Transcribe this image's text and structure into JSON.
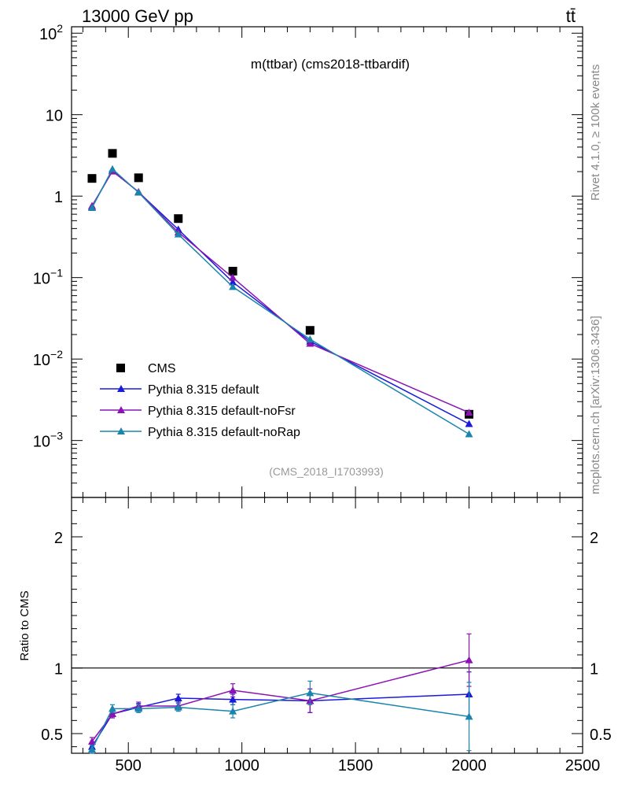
{
  "header": {
    "left_label": "13000 GeV pp",
    "right_label": "tt̄",
    "panel_title": "m(ttbar) (cms2018-ttbardif)",
    "side_label_top": "Rivet 4.1.0, ≥ 100k events",
    "side_label_bottom": "mcplots.cern.ch [arXiv:1306.3436]",
    "analysis_id": "(CMS_2018_I1703993)"
  },
  "colors": {
    "data": "#000000",
    "default": "#1a1adb",
    "noFsr": "#8b12b5",
    "noRap": "#1a84ad"
  },
  "chart_data": [
    {
      "type": "scatter",
      "title": "m(ttbar) (cms2018-ttbardif)",
      "xlabel": "",
      "ylabel": "",
      "yscale": "log",
      "xlim": [
        250,
        2500
      ],
      "ylim": [
        0.0002,
        120
      ],
      "y_ticks": [
        {
          "value": 100,
          "mant": "10",
          "exp": "2"
        },
        {
          "value": 10,
          "mant": "10",
          "exp": ""
        },
        {
          "value": 1,
          "mant": "1",
          "exp": ""
        },
        {
          "value": 0.1,
          "mant": "10",
          "exp": "−1"
        },
        {
          "value": 0.01,
          "mant": "10",
          "exp": "−2"
        },
        {
          "value": 0.001,
          "mant": "10",
          "exp": "−3"
        }
      ],
      "x": [
        340,
        430,
        545,
        720,
        960,
        1300,
        2000
      ],
      "series": [
        {
          "name": "CMS",
          "key": "data",
          "values": [
            1.65,
            3.35,
            1.68,
            0.53,
            0.12,
            0.0225,
            0.0021
          ]
        },
        {
          "name": "Pythia 8.315 default",
          "key": "default",
          "values": [
            0.74,
            2.07,
            1.12,
            0.39,
            0.088,
            0.0165,
            0.0016
          ]
        },
        {
          "name": "Pythia 8.315 default-noFsr",
          "key": "noFsr",
          "values": [
            0.76,
            2.02,
            1.13,
            0.36,
            0.1,
            0.0155,
            0.0022
          ]
        },
        {
          "name": "Pythia 8.315 default-noRap",
          "key": "noRap",
          "values": [
            0.72,
            2.15,
            1.11,
            0.34,
            0.077,
            0.0175,
            0.0012
          ]
        }
      ],
      "legend_position": "lower-left"
    },
    {
      "type": "line",
      "ylabel": "Ratio to CMS",
      "ylim": [
        0.35,
        2.3
      ],
      "xlim": [
        250,
        2500
      ],
      "reference_line": 1,
      "y_ticks": [
        "0.5",
        "1",
        "2"
      ],
      "x_ticks": [
        "500",
        "1000",
        "1500",
        "2000",
        "2500"
      ],
      "x": [
        340,
        430,
        545,
        720,
        960,
        1300,
        2000
      ],
      "series": [
        {
          "name": "Pythia 8.315 default",
          "key": "default",
          "values": [
            0.4,
            0.65,
            0.7,
            0.77,
            0.76,
            0.75,
            0.8
          ],
          "errors": [
            0.03,
            0.03,
            0.03,
            0.03,
            0.04,
            0.09,
            0.17
          ]
        },
        {
          "name": "Pythia 8.315 default-noFsr",
          "key": "noFsr",
          "values": [
            0.44,
            0.65,
            0.71,
            0.71,
            0.83,
            0.75,
            1.06
          ],
          "errors": [
            0.03,
            0.03,
            0.03,
            0.03,
            0.05,
            0.09,
            0.2
          ]
        },
        {
          "name": "Pythia 8.315 default-noRap",
          "key": "noRap",
          "values": [
            0.38,
            0.69,
            0.69,
            0.7,
            0.67,
            0.81,
            0.63
          ],
          "errors": [
            0.03,
            0.03,
            0.03,
            0.03,
            0.05,
            0.09,
            0.26
          ]
        }
      ]
    }
  ]
}
